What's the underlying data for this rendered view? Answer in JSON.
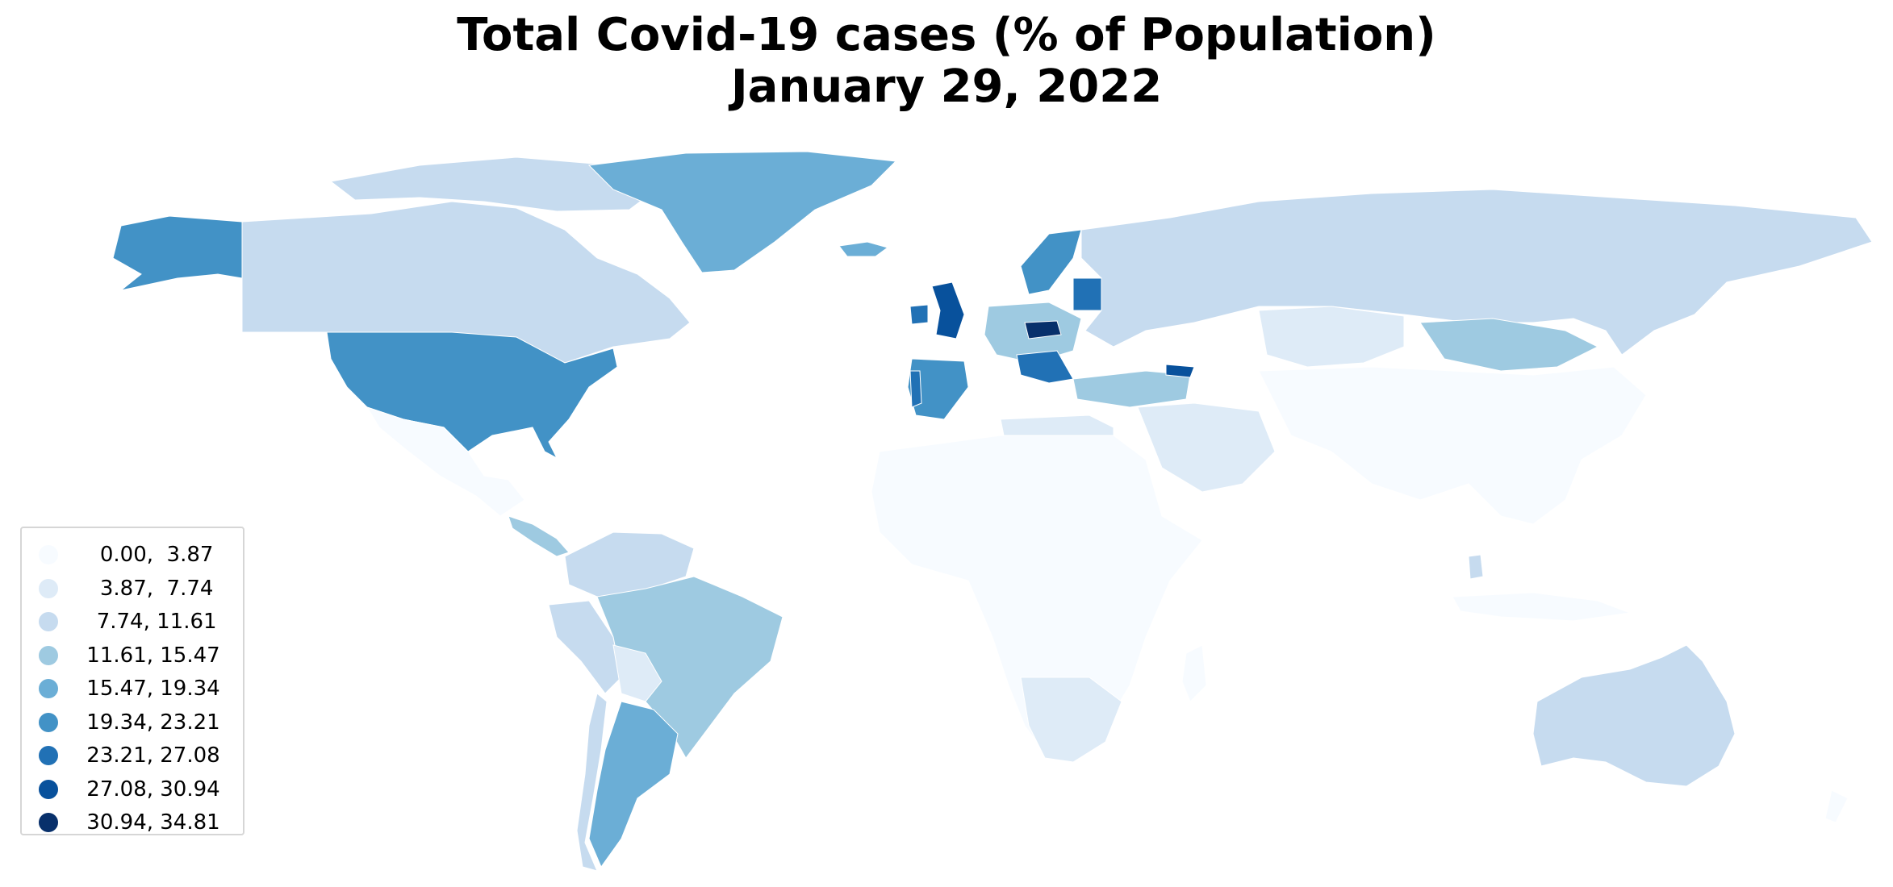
{
  "title": {
    "line1": "Total Covid-19 cases (% of Population)",
    "line2": "January 29, 2022"
  },
  "legend": {
    "items": [
      {
        "label": " 0.00,  3.87",
        "color": "#f7fbff"
      },
      {
        "label": " 3.87,  7.74",
        "color": "#deebf7"
      },
      {
        "label": " 7.74, 11.61",
        "color": "#c6dbef"
      },
      {
        "label": "11.61, 15.47",
        "color": "#9ecae1"
      },
      {
        "label": "15.47, 19.34",
        "color": "#6baed6"
      },
      {
        "label": "19.34, 23.21",
        "color": "#4292c6"
      },
      {
        "label": "23.21, 27.08",
        "color": "#2171b5"
      },
      {
        "label": "27.08, 30.94",
        "color": "#08519c"
      },
      {
        "label": "30.94, 34.81",
        "color": "#08306b"
      }
    ]
  },
  "map_colors": {
    "bin1": "#f7fbff",
    "bin2": "#deebf7",
    "bin3": "#c6dbef",
    "bin4": "#9ecae1",
    "bin5": "#6baed6",
    "bin6": "#4292c6",
    "bin7": "#2171b5",
    "bin8": "#08519c",
    "bin9": "#08306b"
  }
}
